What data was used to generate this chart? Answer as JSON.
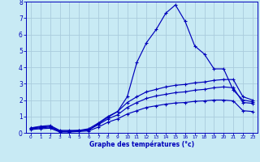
{
  "xlabel": "Graphe des températures (°c)",
  "background_color": "#c8eaf4",
  "line_color": "#0000bb",
  "grid_color": "#aaccdd",
  "xlim": [
    -0.5,
    23.5
  ],
  "ylim": [
    0,
    8
  ],
  "xticks": [
    0,
    1,
    2,
    3,
    4,
    5,
    6,
    7,
    8,
    9,
    10,
    11,
    12,
    13,
    14,
    15,
    16,
    17,
    18,
    19,
    20,
    21,
    22,
    23
  ],
  "yticks": [
    0,
    1,
    2,
    3,
    4,
    5,
    6,
    7,
    8
  ],
  "line1_x": [
    0,
    1,
    2,
    3,
    4,
    5,
    6,
    7,
    8,
    9,
    10,
    11,
    12,
    13,
    14,
    15,
    16,
    17,
    18,
    19,
    20,
    21,
    22,
    23
  ],
  "line1_y": [
    0.3,
    0.4,
    0.45,
    0.15,
    0.15,
    0.15,
    0.18,
    0.55,
    0.95,
    1.3,
    2.2,
    4.3,
    5.5,
    6.3,
    7.3,
    7.8,
    6.8,
    5.3,
    4.8,
    3.9,
    3.9,
    2.6,
    2.0,
    1.9
  ],
  "line2_x": [
    0,
    1,
    2,
    3,
    4,
    5,
    6,
    7,
    8,
    9,
    10,
    11,
    12,
    13,
    14,
    15,
    16,
    17,
    18,
    19,
    20,
    21,
    22,
    23
  ],
  "line2_y": [
    0.3,
    0.35,
    0.4,
    0.1,
    0.1,
    0.15,
    0.25,
    0.6,
    1.0,
    1.3,
    1.85,
    2.2,
    2.5,
    2.65,
    2.8,
    2.9,
    2.95,
    3.05,
    3.1,
    3.2,
    3.25,
    3.25,
    2.2,
    2.0
  ],
  "line3_x": [
    0,
    1,
    2,
    3,
    4,
    5,
    6,
    7,
    8,
    9,
    10,
    11,
    12,
    13,
    14,
    15,
    16,
    17,
    18,
    19,
    20,
    21,
    22,
    23
  ],
  "line3_y": [
    0.25,
    0.3,
    0.35,
    0.08,
    0.08,
    0.12,
    0.18,
    0.5,
    0.85,
    1.1,
    1.55,
    1.85,
    2.1,
    2.25,
    2.35,
    2.45,
    2.5,
    2.6,
    2.65,
    2.75,
    2.8,
    2.75,
    1.85,
    1.8
  ],
  "line4_x": [
    0,
    1,
    2,
    3,
    4,
    5,
    6,
    7,
    8,
    9,
    10,
    11,
    12,
    13,
    14,
    15,
    16,
    17,
    18,
    19,
    20,
    21,
    22,
    23
  ],
  "line4_y": [
    0.2,
    0.25,
    0.28,
    0.05,
    0.05,
    0.08,
    0.12,
    0.35,
    0.65,
    0.85,
    1.15,
    1.35,
    1.55,
    1.65,
    1.75,
    1.82,
    1.85,
    1.92,
    1.95,
    2.0,
    2.0,
    1.95,
    1.35,
    1.3
  ]
}
